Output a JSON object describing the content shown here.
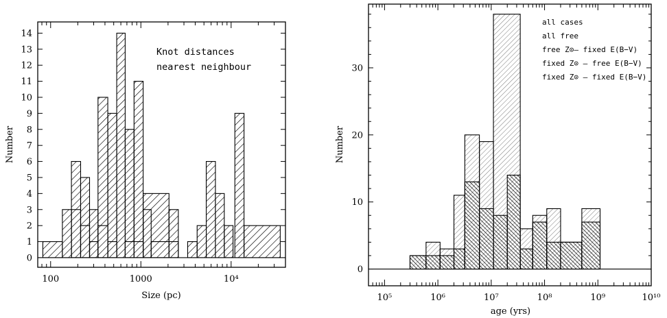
{
  "chart_data": [
    {
      "type": "bar",
      "xlabel": "Size (pc)",
      "ylabel": "Number",
      "annotation": [
        "Knot distances",
        "nearest neighbour"
      ],
      "x_scale": "log",
      "xlim": [
        72,
        40000
      ],
      "ylim": [
        -0.6,
        14.7
      ],
      "x_ticks": [
        {
          "value": 100,
          "label": "100"
        },
        {
          "value": 1000,
          "label": "1000"
        },
        {
          "value": 10000,
          "label": "10⁴"
        }
      ],
      "y_ticks": [
        0,
        1,
        2,
        3,
        4,
        5,
        6,
        7,
        8,
        9,
        10,
        11,
        12,
        13,
        14
      ],
      "series": [
        {
          "fill": "hatched",
          "bins": [
            {
              "x0": 82,
              "x1": 135,
              "y": 1
            },
            {
              "x0": 135,
              "x1": 170,
              "y": 3
            },
            {
              "x0": 170,
              "x1": 215,
              "y": 6
            },
            {
              "x0": 215,
              "x1": 270,
              "y": 5
            },
            {
              "x0": 270,
              "x1": 335,
              "y": 3
            },
            {
              "x0": 335,
              "x1": 430,
              "y": 10
            },
            {
              "x0": 430,
              "x1": 540,
              "y": 9
            },
            {
              "x0": 540,
              "x1": 670,
              "y": 14
            },
            {
              "x0": 670,
              "x1": 840,
              "y": 8
            },
            {
              "x0": 840,
              "x1": 1060,
              "y": 11
            },
            {
              "x0": 1060,
              "x1": 2050,
              "y": 4
            },
            {
              "x0": 2050,
              "x1": 2600,
              "y": 3
            },
            {
              "x0": 3300,
              "x1": 4200,
              "y": 1
            },
            {
              "x0": 4200,
              "x1": 5300,
              "y": 2
            },
            {
              "x0": 5300,
              "x1": 6700,
              "y": 6
            },
            {
              "x0": 6700,
              "x1": 8400,
              "y": 4
            },
            {
              "x0": 8400,
              "x1": 10500,
              "y": 2
            },
            {
              "x0": 11000,
              "x1": 13900,
              "y": 9
            },
            {
              "x0": 13900,
              "x1": 35000,
              "y": 2
            }
          ]
        },
        {
          "fill": "outline",
          "bins": [
            {
              "x0": 170,
              "x1": 215,
              "y": 3
            },
            {
              "x0": 215,
              "x1": 270,
              "y": 2
            },
            {
              "x0": 270,
              "x1": 335,
              "y": 1
            },
            {
              "x0": 335,
              "x1": 430,
              "y": 2
            },
            {
              "x0": 430,
              "x1": 540,
              "y": 1
            },
            {
              "x0": 540,
              "x1": 670,
              "y": 0
            },
            {
              "x0": 670,
              "x1": 1060,
              "y": 1
            },
            {
              "x0": 1060,
              "x1": 1300,
              "y": 3
            },
            {
              "x0": 1300,
              "x1": 2600,
              "y": 1
            }
          ]
        }
      ]
    },
    {
      "type": "bar",
      "xlabel": "age (yrs)",
      "ylabel": "Number",
      "x_scale": "log",
      "xlim": [
        50000,
        10000000000
      ],
      "ylim": [
        -2.5,
        39.5
      ],
      "x_ticks": [
        {
          "value": 100000,
          "label": "10⁵"
        },
        {
          "value": 1000000,
          "label": "10⁶"
        },
        {
          "value": 10000000,
          "label": "10⁷"
        },
        {
          "value": 100000000,
          "label": "10⁸"
        },
        {
          "value": 1000000000,
          "label": "10⁹"
        },
        {
          "value": 10000000000,
          "label": "10¹⁰"
        }
      ],
      "y_ticks": [
        0,
        10,
        20,
        30
      ],
      "legend": [
        "all cases",
        "all free",
        "free Z⊙– fixed E(B−V)",
        "fixed Z⊙ – free E(B−V)",
        "fixed Z⊙ – fixed E(B−V)"
      ],
      "legend_position": "top-right",
      "series": [
        {
          "name": "all cases",
          "fill": "light-hatch",
          "bins": [
            {
              "x0": 300000,
              "x1": 600000,
              "y": 2
            },
            {
              "x0": 600000,
              "x1": 1100000,
              "y": 4
            },
            {
              "x0": 1100000,
              "x1": 2000000,
              "y": 3
            },
            {
              "x0": 2000000,
              "x1": 3200000,
              "y": 11
            },
            {
              "x0": 3200000,
              "x1": 6000000,
              "y": 20
            },
            {
              "x0": 6000000,
              "x1": 11000000,
              "y": 19
            },
            {
              "x0": 11000000,
              "x1": 35000000,
              "y": 38
            },
            {
              "x0": 35000000,
              "x1": 60000000,
              "y": 6
            },
            {
              "x0": 60000000,
              "x1": 110000000,
              "y": 8
            },
            {
              "x0": 110000000,
              "x1": 200000000,
              "y": 9
            },
            {
              "x0": 200000000,
              "x1": 500000000,
              "y": 4
            },
            {
              "x0": 500000000,
              "x1": 1100000000,
              "y": 9
            }
          ]
        },
        {
          "name": "fixed Z⊙ – fixed E(B−V)",
          "fill": "dense-crosshatch",
          "bins": [
            {
              "x0": 300000,
              "x1": 600000,
              "y": 2
            },
            {
              "x0": 600000,
              "x1": 1100000,
              "y": 2
            },
            {
              "x0": 1100000,
              "x1": 2000000,
              "y": 2
            },
            {
              "x0": 2000000,
              "x1": 3200000,
              "y": 3
            },
            {
              "x0": 3200000,
              "x1": 6000000,
              "y": 13
            },
            {
              "x0": 6000000,
              "x1": 11000000,
              "y": 9
            },
            {
              "x0": 11000000,
              "x1": 20000000,
              "y": 8
            },
            {
              "x0": 20000000,
              "x1": 35000000,
              "y": 14
            },
            {
              "x0": 35000000,
              "x1": 60000000,
              "y": 3
            },
            {
              "x0": 60000000,
              "x1": 110000000,
              "y": 7
            },
            {
              "x0": 110000000,
              "x1": 200000000,
              "y": 4
            },
            {
              "x0": 200000000,
              "x1": 500000000,
              "y": 4
            },
            {
              "x0": 500000000,
              "x1": 1100000000,
              "y": 7
            }
          ]
        }
      ]
    }
  ]
}
